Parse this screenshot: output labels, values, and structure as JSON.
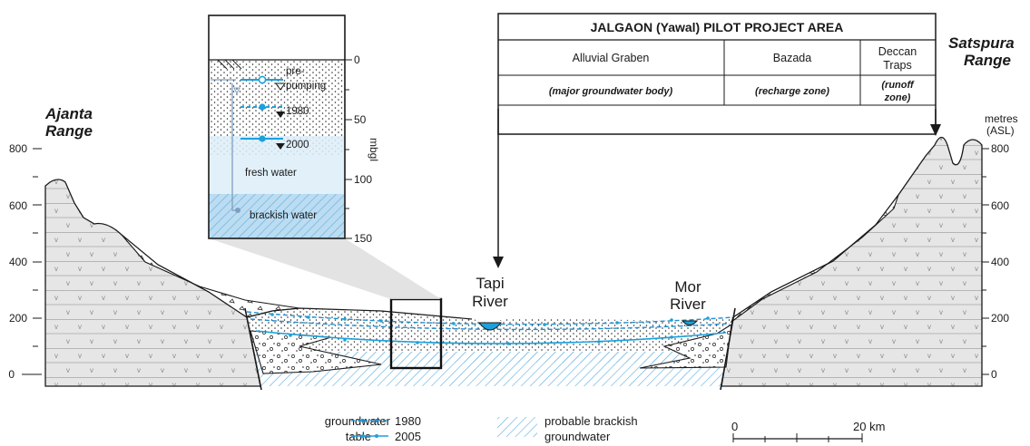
{
  "ranges": {
    "left": [
      "Ajanta",
      "Range"
    ],
    "right": [
      "Satspura",
      "Range"
    ]
  },
  "axis": {
    "left_ticks": [
      "800",
      "600",
      "400",
      "200",
      "0"
    ],
    "right_ticks": [
      "800",
      "600",
      "400",
      "200",
      "0"
    ],
    "right_unit": [
      "metres",
      "(ASL)"
    ]
  },
  "rivers": {
    "tapi": [
      "Tapi",
      "River"
    ],
    "mor": [
      "Mor",
      "River"
    ]
  },
  "project_table": {
    "title": "JALGAON (Yawal) PILOT PROJECT AREA",
    "zones": [
      {
        "name": [
          "Alluvial Graben"
        ],
        "note": [
          "(major groundwater body)"
        ]
      },
      {
        "name": [
          "Bazada"
        ],
        "note": [
          "(recharge zone)"
        ]
      },
      {
        "name": [
          "Deccan",
          "Traps"
        ],
        "note": [
          "(runoff",
          "zone)"
        ]
      }
    ]
  },
  "inset": {
    "ticks": [
      "0",
      "50",
      "100",
      "150"
    ],
    "unit": "mbgl",
    "prepumping": [
      "pre-",
      "pumping"
    ],
    "year_1980": "1980",
    "year_2000": "2000",
    "fresh_water": "fresh water",
    "brackish_water": "brackish water"
  },
  "legend": {
    "groundwater_table": [
      "groundwater",
      "table"
    ],
    "year_1980": "1980",
    "year_2005": "2005",
    "brackish": [
      "probable brackish",
      "groundwater"
    ],
    "scale_start": "0",
    "scale_end": "20 km"
  },
  "colors": {
    "water_line": "#1ba1dc",
    "dashed_line": "#1f8fd0",
    "basalt_fill": "#e6e6e6",
    "grid_line": "#b5b5b5",
    "fresh_water": "#dcedf8",
    "brackish_fill": "#bcdcf1",
    "hatch": "#5aaee0"
  }
}
